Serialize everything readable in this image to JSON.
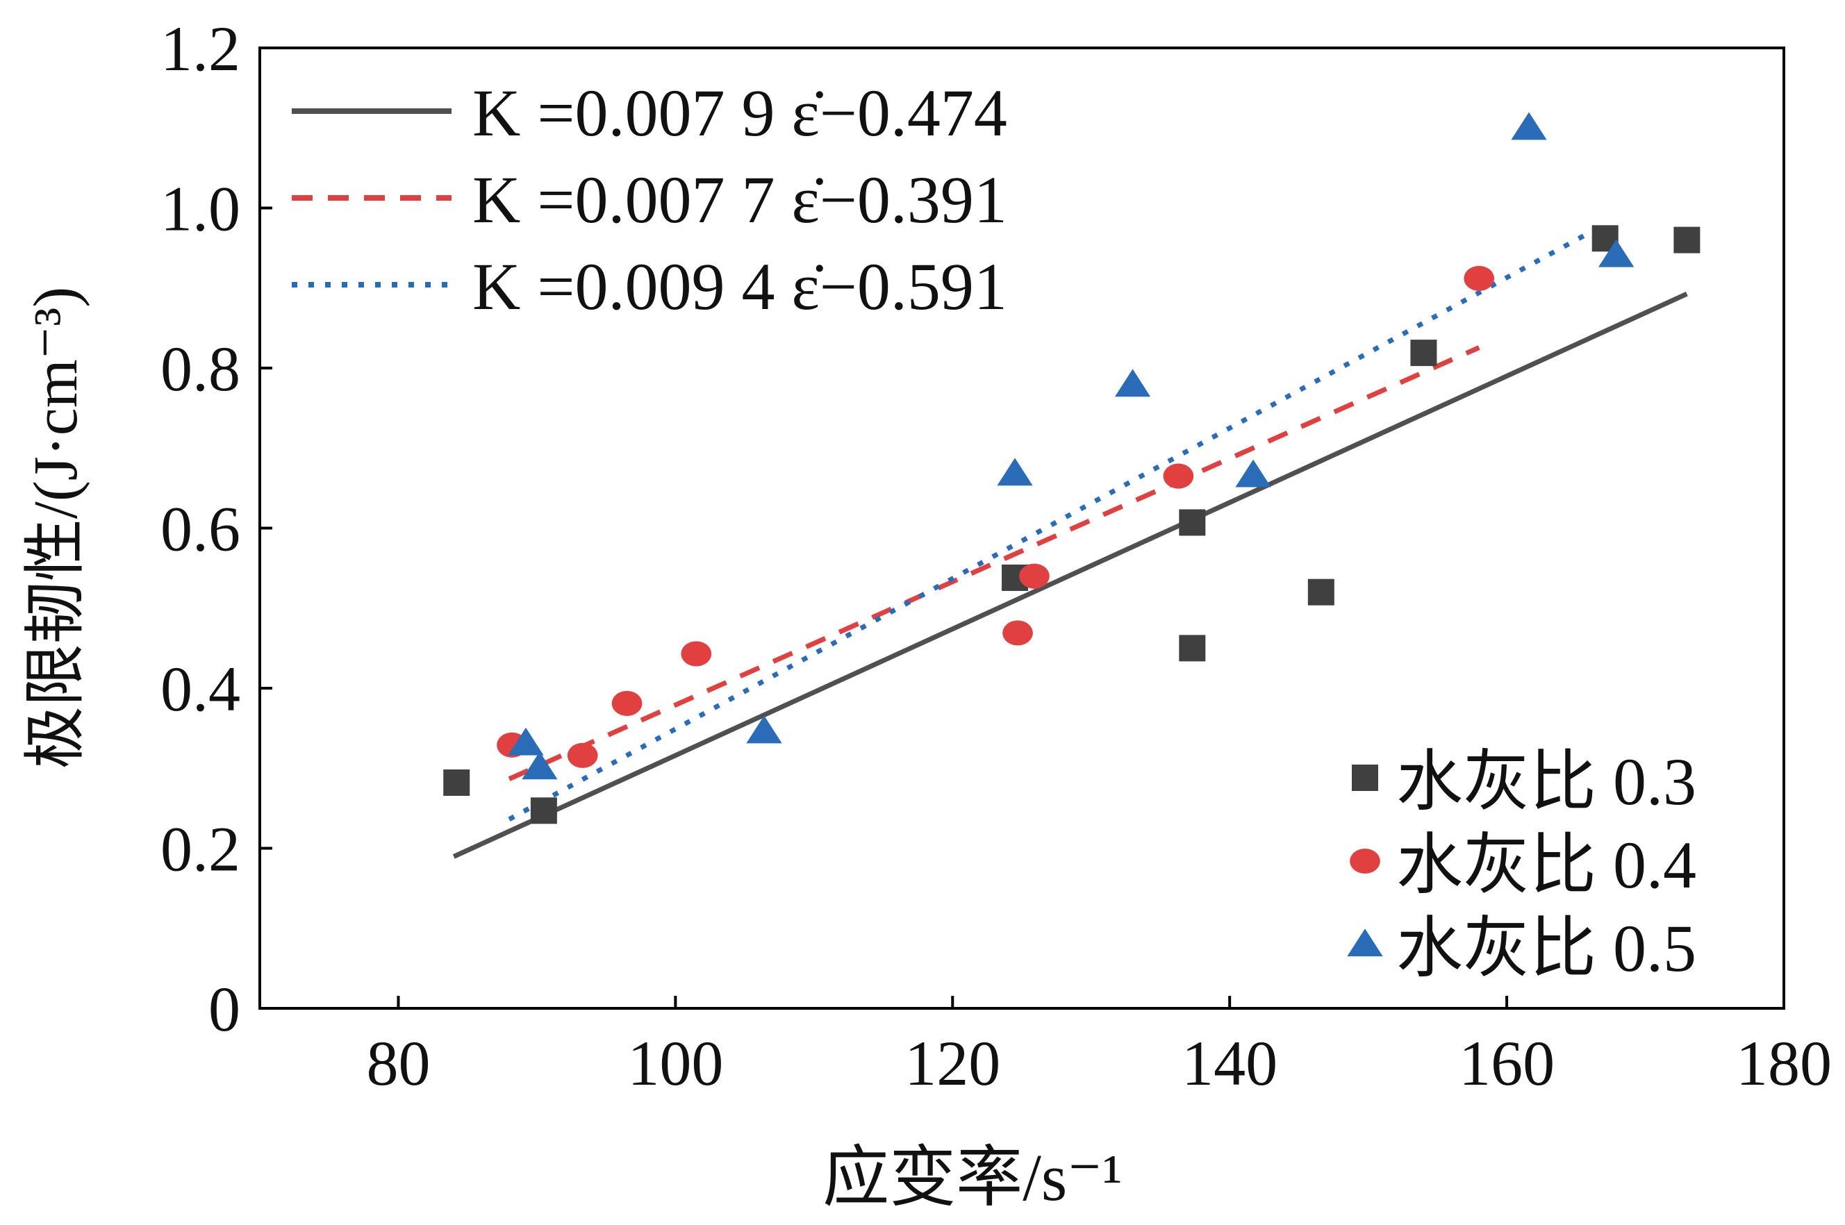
{
  "chart_data": {
    "type": "scatter",
    "xlabel": "应变率/s⁻¹",
    "ylabel": "极限韧性/(J·cm⁻³)",
    "xlim": [
      70,
      180
    ],
    "ylim": [
      0,
      1.2
    ],
    "xticks": [
      80,
      100,
      120,
      140,
      160,
      180
    ],
    "yticks": [
      0,
      0.2,
      0.4,
      0.6,
      0.8,
      1.0,
      1.2
    ],
    "ytick_labels": [
      "0",
      "0.2",
      "0.4",
      "0.6",
      "0.8",
      "1.0",
      "1.2"
    ],
    "grid": false,
    "series": [
      {
        "name": "水灰比 0.3",
        "marker": "square",
        "color": "#404040",
        "points": [
          [
            84.2,
            0.282
          ],
          [
            90.5,
            0.247
          ],
          [
            124.5,
            0.538
          ],
          [
            137.3,
            0.607
          ],
          [
            137.3,
            0.45
          ],
          [
            146.6,
            0.52
          ],
          [
            154.0,
            0.819
          ],
          [
            167.1,
            0.962
          ],
          [
            173.0,
            0.96
          ]
        ]
      },
      {
        "name": "水灰比 0.4",
        "marker": "circle",
        "color": "#e04040",
        "points": [
          [
            88.2,
            0.329
          ],
          [
            93.3,
            0.316
          ],
          [
            96.5,
            0.381
          ],
          [
            101.5,
            0.443
          ],
          [
            124.7,
            0.469
          ],
          [
            125.9,
            0.54
          ],
          [
            136.3,
            0.665
          ],
          [
            158.0,
            0.912
          ]
        ]
      },
      {
        "name": "水灰比 0.5",
        "marker": "triangle",
        "color": "#2a6cb8",
        "points": [
          [
            89.2,
            0.331
          ],
          [
            90.2,
            0.301
          ],
          [
            106.4,
            0.346
          ],
          [
            124.5,
            0.668
          ],
          [
            133.0,
            0.779
          ],
          [
            141.7,
            0.666
          ],
          [
            161.6,
            1.1
          ],
          [
            167.9,
            0.941
          ]
        ]
      }
    ],
    "fits": [
      {
        "label": "K =0.007 9 ε̇−0.474",
        "slope": 0.0079,
        "intercept": -0.474,
        "x_range": [
          84,
          173
        ],
        "style": "solid",
        "color": "#505050"
      },
      {
        "label": "K =0.007 7 ε̇−0.391",
        "slope": 0.0077,
        "intercept": -0.391,
        "x_range": [
          88,
          158
        ],
        "style": "dashed",
        "color": "#e04040"
      },
      {
        "label": "K =0.009 4 ε̇−0.591",
        "slope": 0.0094,
        "intercept": -0.591,
        "x_range": [
          88,
          167
        ],
        "style": "dotted",
        "color": "#2a6cb8"
      }
    ],
    "legend_fits_placement": "top-left",
    "legend_series_placement": "bottom-right"
  }
}
